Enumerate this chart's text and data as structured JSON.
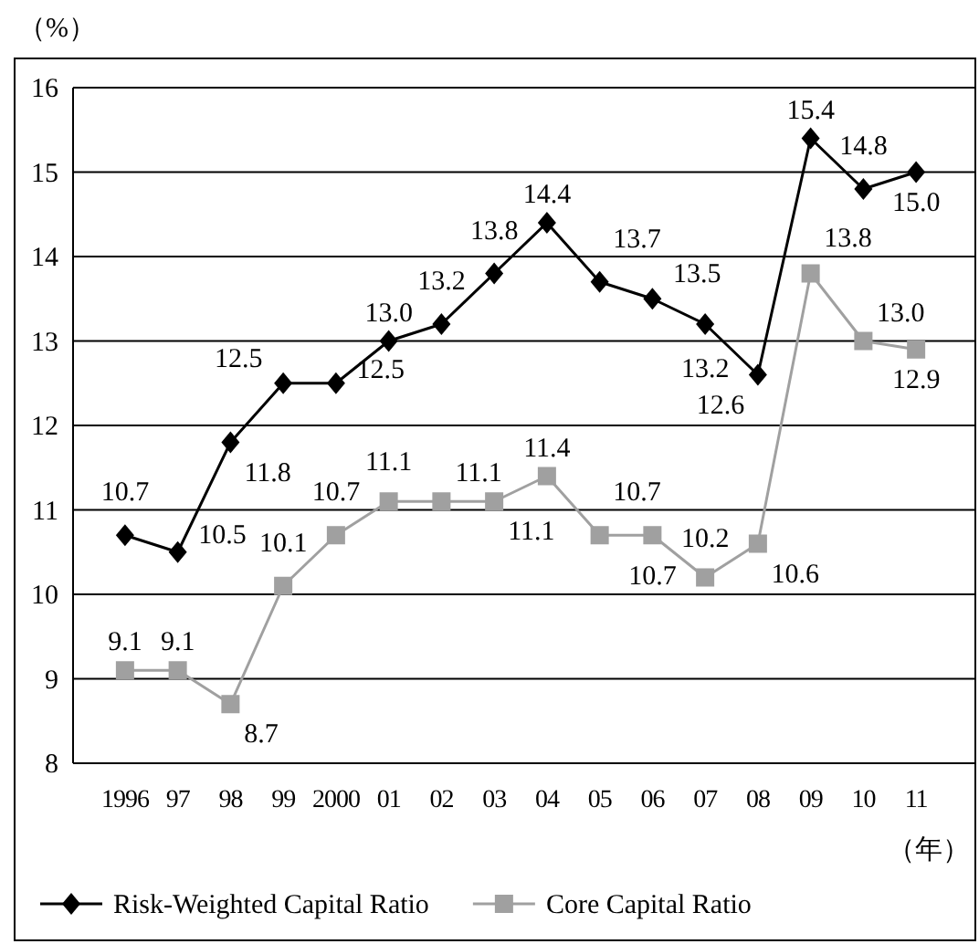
{
  "chart_data": {
    "type": "line",
    "ylabel": "（%）",
    "xlabel": "（年）",
    "categories": [
      "1996",
      "97",
      "98",
      "99",
      "2000",
      "01",
      "02",
      "03",
      "04",
      "05",
      "06",
      "07",
      "08",
      "09",
      "10",
      "11"
    ],
    "ylim": [
      8,
      16
    ],
    "yticks": [
      8,
      9,
      10,
      11,
      12,
      13,
      14,
      15,
      16
    ],
    "grid": "y",
    "legend": "bottom",
    "series": [
      {
        "name": "Risk-Weighted Capital Ratio",
        "color": "#000000",
        "marker": "diamond",
        "values": [
          10.7,
          10.5,
          11.8,
          12.5,
          12.5,
          13.0,
          13.2,
          13.8,
          14.4,
          13.7,
          13.5,
          13.2,
          12.6,
          15.4,
          14.8,
          15.0
        ],
        "value_labels": [
          "10.7",
          "10.5",
          "11.8",
          "12.5",
          "12.5",
          "13.0",
          "13.2",
          "13.8",
          "14.4",
          "13.7",
          "13.5",
          "13.2",
          "12.6",
          "15.4",
          "14.8",
          "15.0"
        ]
      },
      {
        "name": "Core Capital Ratio",
        "color": "#a0a0a0",
        "marker": "square",
        "values": [
          9.1,
          9.1,
          8.7,
          10.1,
          10.7,
          11.1,
          11.1,
          11.1,
          11.4,
          10.7,
          10.7,
          10.2,
          10.6,
          13.8,
          13.0,
          12.9
        ],
        "value_labels": [
          "9.1",
          "9.1",
          "8.7",
          "10.1",
          "10.7",
          "11.1",
          "11.1",
          "11.1",
          "11.4",
          "10.7",
          "10.7",
          "10.2",
          "10.6",
          "13.8",
          "13.0",
          "12.9"
        ]
      }
    ]
  }
}
